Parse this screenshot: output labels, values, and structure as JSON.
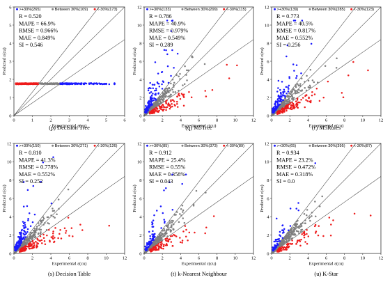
{
  "colors": {
    "over": "#1a1aff",
    "between": "#7f7f7f",
    "under": "#ee1b1b",
    "line": "#444444"
  },
  "legend_symbols": {
    "over": ">+30%",
    "between": "Between 30%",
    "under": "<-30%"
  },
  "chart_data": [
    {
      "type": "scatter",
      "caption": "(p) Decision Tree",
      "xlabel": "Experimental ε(cu)",
      "ylabel": "Predicted ε(cu)",
      "xlim": [
        0,
        6
      ],
      "ylim": [
        0,
        6
      ],
      "xticks": [
        "0",
        "1",
        "2",
        "3",
        "4",
        "5",
        "6"
      ],
      "yticks": [
        "0",
        "1",
        "2",
        "3",
        "4",
        "5",
        "6"
      ],
      "counts": {
        "over": 265,
        "between": 109,
        "under": 173
      },
      "legend": {
        "over": ">+30%(265)",
        "between": "Between 30%(109)",
        "under": "<-30%(173)"
      },
      "stats": [
        "R = 0.520",
        "MAPE = 66.9%",
        "RMSE = 0.966%",
        "MAE = 0.849%",
        "SI = 0.546"
      ],
      "model": "constant",
      "pred": 1.76
    },
    {
      "type": "scatter",
      "caption": "(q) M5Tree",
      "xlabel": "Experimental ε(cu)",
      "ylabel": "Predicted ε(cu)",
      "xlim": [
        0,
        12
      ],
      "ylim": [
        0,
        12
      ],
      "xticks": [
        "0",
        "2",
        "4",
        "6",
        "8",
        "10",
        "12"
      ],
      "yticks": [
        "0",
        "2",
        "4",
        "6",
        "8",
        "10",
        "12"
      ],
      "counts": {
        "over": 133,
        "between": 299,
        "under": 115
      },
      "legend": {
        "over": ">+30%(133)",
        "between": "Between 30%(299)",
        "under": "<-30%(115)"
      },
      "stats": [
        "R = 0.786",
        "MAPE = 40.9%",
        "RMSE = 0.979%",
        "MAE = 0.549%",
        "SI = 0.289"
      ],
      "model": "scatter"
    },
    {
      "type": "scatter",
      "caption": "(r) M5Rules",
      "xlabel": "Experimental ε(cu)",
      "ylabel": "Predicted ε(cu)",
      "xlim": [
        0,
        12
      ],
      "ylim": [
        0,
        12
      ],
      "xticks": [
        "0",
        "2",
        "4",
        "6",
        "8",
        "10",
        "12"
      ],
      "yticks": [
        "0",
        "2",
        "4",
        "6",
        "8",
        "10",
        "12"
      ],
      "counts": {
        "over": 139,
        "between": 285,
        "under": 123
      },
      "legend": {
        "over": ">+30%(139)",
        "between": "Between 30%(285)",
        "under": "<-30%(123)"
      },
      "stats": [
        "R = 0.773",
        "MAPE = 40.5%",
        "RMSE = 0.817%",
        "MAE = 0.552%",
        "SI = 0.256"
      ],
      "model": "scatter"
    },
    {
      "type": "scatter",
      "caption": "(s) Decision Table",
      "xlabel": "Experimental ε(cu)",
      "ylabel": "Predicted ε(cu)",
      "xlim": [
        0,
        12
      ],
      "ylim": [
        0,
        12
      ],
      "xticks": [
        "0",
        "2",
        "4",
        "6",
        "8",
        "10",
        "12"
      ],
      "yticks": [
        "0",
        "2",
        "4",
        "6",
        "8",
        "10",
        "12"
      ],
      "counts": {
        "over": 150,
        "between": 271,
        "under": 126
      },
      "legend": {
        "over": ">+30%(150)",
        "between": "Between 30%(271)",
        "under": "<-30%(126)"
      },
      "stats": [
        "R = 0.810",
        "MAPE = 41.3%",
        "RMSE = 0.778%",
        "MAE = 0.552%",
        "SI = 0.252"
      ],
      "model": "scatter"
    },
    {
      "type": "scatter",
      "caption": "(t) k-Nearest Neighbour",
      "xlabel": "Experimental ε(cu)",
      "ylabel": "Predicted ε(cu)",
      "xlim": [
        0,
        12
      ],
      "ylim": [
        0,
        12
      ],
      "xticks": [
        "0",
        "2",
        "4",
        "6",
        "8",
        "10",
        "12"
      ],
      "yticks": [
        "0",
        "2",
        "4",
        "6",
        "8",
        "10",
        "12"
      ],
      "counts": {
        "over": 85,
        "between": 373,
        "under": 89
      },
      "legend": {
        "over": ">+30%(85)",
        "between": "Between 30%(373)",
        "under": "<-30%(89)"
      },
      "stats": [
        "R = 0.912",
        "MAPE = 25.4%",
        "RMSE = 0.55%",
        "MAE = 0.358%",
        "SI = 0.043"
      ],
      "model": "scatter"
    },
    {
      "type": "scatter",
      "caption": "(u) K-Star",
      "xlabel": "Experimental ε(cu)",
      "ylabel": "Predicted ε(cu)",
      "xlim": [
        0,
        12
      ],
      "ylim": [
        0,
        12
      ],
      "xticks": [
        "0",
        "2",
        "4",
        "6",
        "8",
        "10",
        "12"
      ],
      "yticks": [
        "0",
        "2",
        "4",
        "6",
        "8",
        "10",
        "12"
      ],
      "counts": {
        "over": 65,
        "between": 395,
        "under": 87
      },
      "legend": {
        "over": ">+30%(65)",
        "between": "Between 30%(395)",
        "under": "<-30%(87)"
      },
      "stats": [
        "R = 0.934",
        "MAPE = 23.2%",
        "RMSE = 0.472%",
        "MAE = 0.318%",
        "SI = 0.0"
      ],
      "model": "scatter"
    }
  ]
}
